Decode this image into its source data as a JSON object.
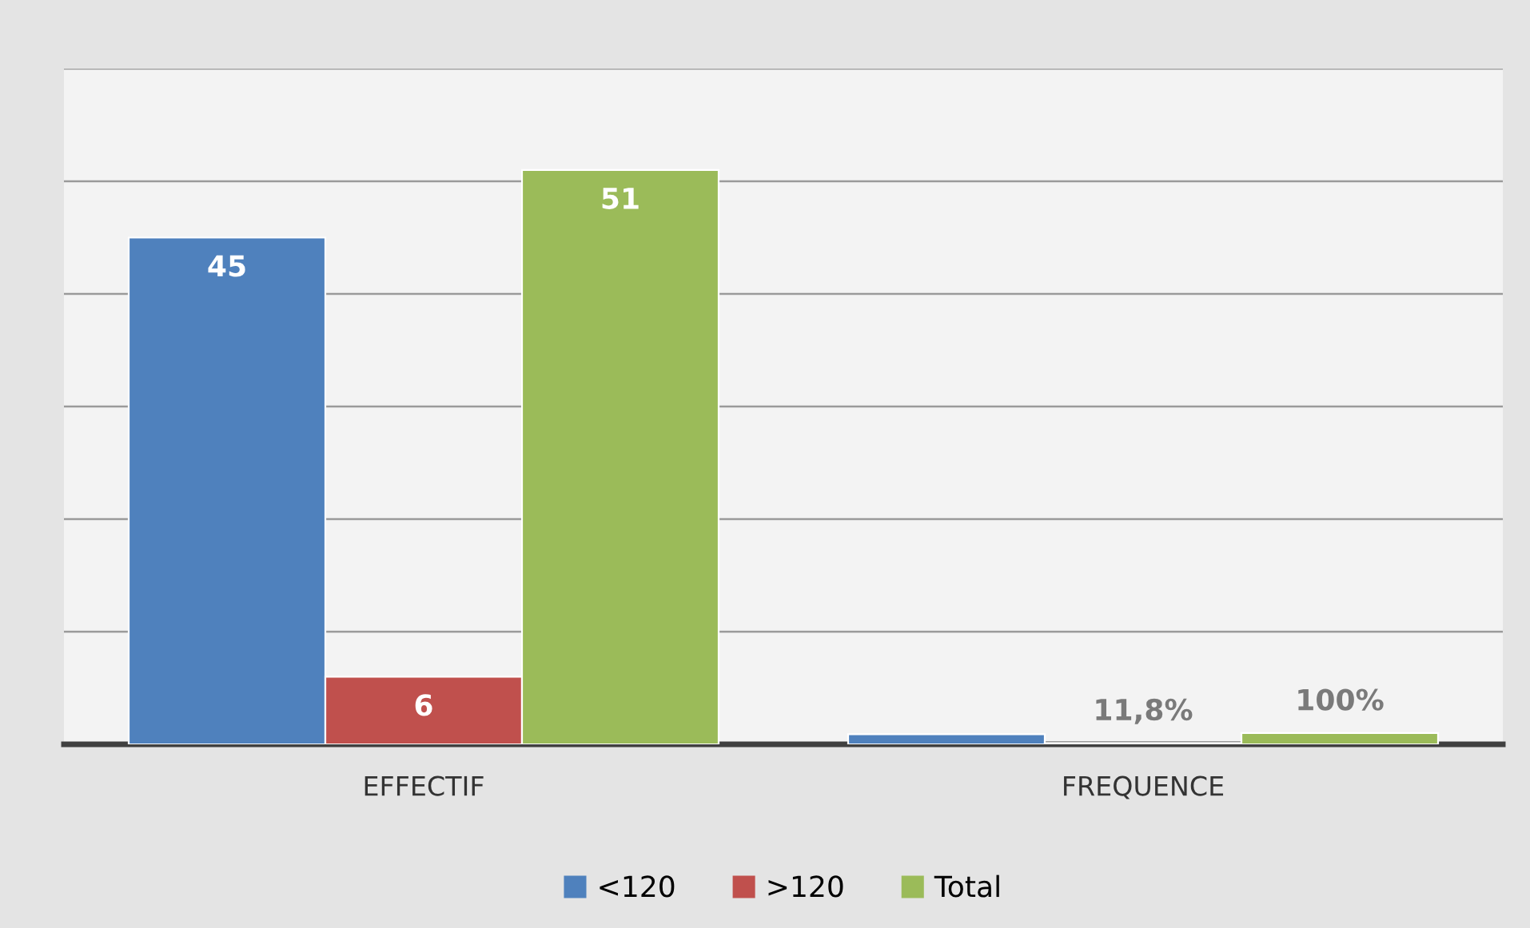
{
  "chart_data": {
    "type": "bar",
    "categories": [
      "EFFECTIF",
      "FREQUENCE"
    ],
    "series": [
      {
        "name": "<120",
        "color": "#4f81bd",
        "values": [
          45,
          0.9
        ],
        "value_labels": [
          "45",
          null
        ]
      },
      {
        "name": ">120",
        "color": "#c0504d",
        "values": [
          6,
          0.118
        ],
        "value_labels": [
          "6",
          "11,8%"
        ]
      },
      {
        "name": "Total",
        "color": "#9bbb59",
        "values": [
          51,
          1
        ],
        "value_labels": [
          "51",
          "100%"
        ]
      }
    ],
    "ylim": [
      0,
      60
    ],
    "yticks": [
      {
        "value": 0,
        "label": null
      },
      {
        "value": 10,
        "label": null
      },
      {
        "value": 20,
        "label": null
      },
      {
        "value": 30,
        "label": null
      },
      {
        "value": 40,
        "label": null
      },
      {
        "value": 50,
        "label": null
      },
      {
        "value": 60,
        "label": null
      }
    ],
    "tick_labels": "x",
    "grid": "y",
    "legend": "bottom"
  }
}
